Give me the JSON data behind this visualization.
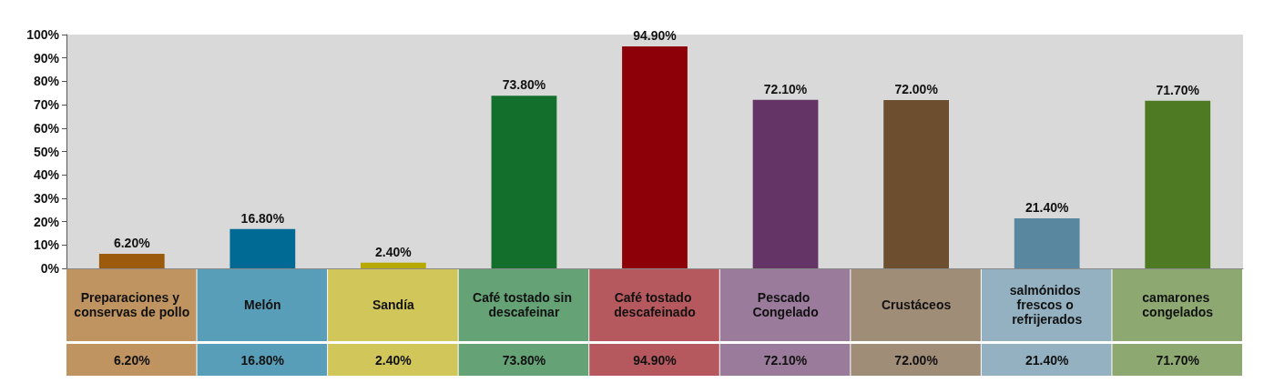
{
  "chart_data": {
    "type": "bar",
    "categories": [
      "Preparaciones y conservas de pollo",
      "Melón",
      "Sandía",
      "Café tostado sin descafeinar",
      "Café tostado descafeinado",
      "Pescado Congelado",
      "Crustáceos",
      "salmónidos frescos o refrijerados",
      "camarones congelados"
    ],
    "values": [
      6.2,
      16.8,
      2.4,
      73.8,
      94.9,
      72.1,
      72.0,
      21.4,
      71.7
    ],
    "value_labels": [
      "6.20%",
      "16.80%",
      "2.40%",
      "73.80%",
      "94.90%",
      "72.10%",
      "72.00%",
      "21.40%",
      "71.70%"
    ],
    "colors": [
      "#9c5a0c",
      "#006a94",
      "#b8a800",
      "#12702c",
      "#8e0008",
      "#633465",
      "#6d4f30",
      "#5a87a0",
      "#4f7a24"
    ],
    "ylim": [
      0,
      100
    ],
    "yticks": [
      {
        "value": 0,
        "label": "0%"
      },
      {
        "value": 10,
        "label": "10%"
      },
      {
        "value": 20,
        "label": "20%"
      },
      {
        "value": 30,
        "label": "30%"
      },
      {
        "value": 40,
        "label": "40%"
      },
      {
        "value": 50,
        "label": "50%"
      },
      {
        "value": 60,
        "label": "60%"
      },
      {
        "value": 70,
        "label": "70%"
      },
      {
        "value": 80,
        "label": "80%"
      },
      {
        "value": 90,
        "label": "90%"
      },
      {
        "value": 100,
        "label": "100%"
      }
    ],
    "grid": false
  }
}
